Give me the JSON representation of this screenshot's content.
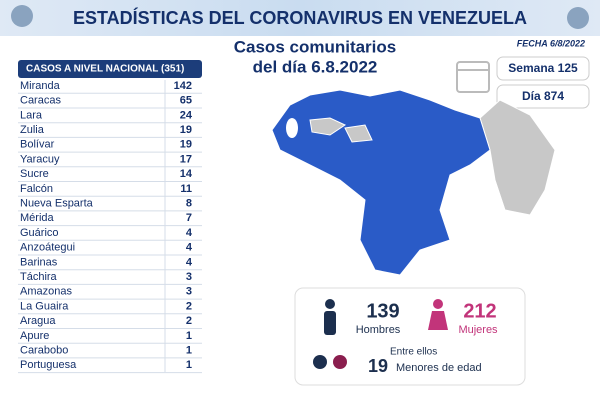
{
  "header": {
    "title": "ESTADÍSTICAS DEL CORONAVIRUS EN VENEZUELA",
    "subtitle": [
      "Casos comunitarios",
      "del día 6.8.2022"
    ],
    "date": "FECHA 6/8/2022"
  },
  "table": {
    "header": "CASOS A NIVEL NACIONAL  (351)",
    "rows": [
      [
        "Miranda",
        142
      ],
      [
        "Caracas",
        65
      ],
      [
        "Lara",
        24
      ],
      [
        "Zulia",
        19
      ],
      [
        "Bolívar",
        19
      ],
      [
        "Yaracuy",
        17
      ],
      [
        "Sucre",
        14
      ],
      [
        "Falcón",
        11
      ],
      [
        "Nueva Esparta",
        8
      ],
      [
        "Mérida",
        7
      ],
      [
        "Guárico",
        4
      ],
      [
        "Anzoátegui",
        4
      ],
      [
        "Barinas",
        4
      ],
      [
        "Táchira",
        3
      ],
      [
        "Amazonas",
        3
      ],
      [
        "La Guaira",
        2
      ],
      [
        "Aragua",
        2
      ],
      [
        "Apure",
        1
      ],
      [
        "Carabobo",
        1
      ],
      [
        "Portuguesa",
        1
      ]
    ]
  },
  "counters": {
    "week": "Semana 125",
    "day": "Día 874"
  },
  "demographics": {
    "men": {
      "value": 139,
      "label": "Hombres"
    },
    "women": {
      "value": 212,
      "label": "Mujeres"
    },
    "minors_intro": "Entre ellos",
    "minors": {
      "value": 19,
      "label": "Menores de edad"
    }
  }
}
